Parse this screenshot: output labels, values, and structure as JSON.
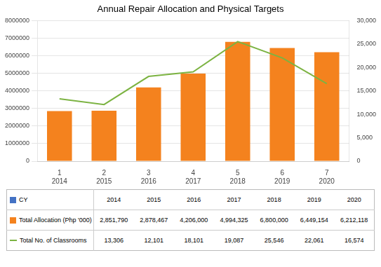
{
  "chart_data": {
    "type": "bar",
    "title": "Annual Repair Allocation and Physical Targets",
    "categories": [
      "1",
      "2",
      "3",
      "4",
      "5",
      "6",
      "7"
    ],
    "table": {
      "header": "CY",
      "color": "#4472C4",
      "columns": [
        "2014",
        "2015",
        "2016",
        "2017",
        "2018",
        "2019",
        "2020"
      ]
    },
    "series": [
      {
        "name": "Total Allocation    (Php '000)",
        "type": "bar",
        "color": "#F4821E",
        "values": [
          2851790,
          2878467,
          4206000,
          4994325,
          6800000,
          6449154,
          6212118
        ],
        "value_labels": [
          "2,851,790",
          "2,878,467",
          "4,206,000",
          "4,994,325",
          "6,800,000",
          "6,449,154",
          "6,212,118"
        ]
      },
      {
        "name": "Total No. of Classrooms",
        "type": "line",
        "color": "#7CB342",
        "axis": "y2",
        "values": [
          13306,
          12101,
          18101,
          19087,
          25546,
          22061,
          16574
        ],
        "value_labels": [
          "13,306",
          "12,101",
          "18,101",
          "19,087",
          "25,546",
          "22,061",
          "16,574"
        ]
      }
    ],
    "ylim": [
      0,
      8000000
    ],
    "yticks": [
      0,
      1000000,
      2000000,
      3000000,
      4000000,
      5000000,
      6000000,
      7000000,
      8000000
    ],
    "y2lim": [
      0,
      30000
    ],
    "y2ticks": [
      0,
      {
        "value": 5000,
        "label": "5,000"
      },
      {
        "value": 10000,
        "label": "10,000"
      },
      {
        "value": 15000,
        "label": "15,000"
      },
      {
        "value": 20000,
        "label": "20,000"
      },
      {
        "value": 25000,
        "label": "25,000"
      },
      {
        "value": 30000,
        "label": "30,000"
      }
    ],
    "grid": true,
    "legend": "bottom"
  }
}
